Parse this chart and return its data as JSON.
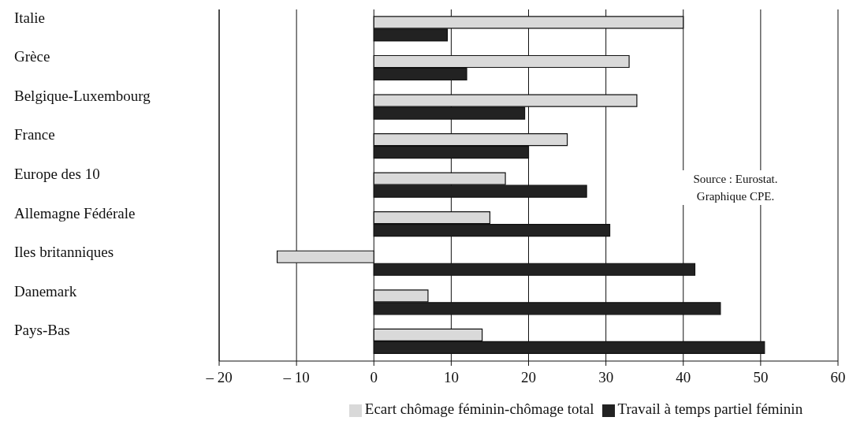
{
  "chart_data": {
    "type": "bar",
    "orientation": "horizontal",
    "categories": [
      "Italie",
      "Grèce",
      "Belgique-Luxembourg",
      "France",
      "Europe des 10",
      "Allemagne Fédérale",
      "Iles britanniques",
      "Danemark",
      "Pays-Bas"
    ],
    "series": [
      {
        "name": "Ecart chômage féminin-chômage total",
        "color": "#d9d9d9",
        "values": [
          40,
          33,
          34,
          25,
          17,
          15,
          -12.5,
          7,
          14
        ]
      },
      {
        "name": "Travail à temps partiel féminin",
        "color": "#222222",
        "values": [
          9.5,
          12,
          19.5,
          20,
          27.5,
          30.5,
          41.5,
          44.8,
          50.5
        ]
      }
    ],
    "xlim": [
      -20,
      60
    ],
    "xticks": [
      {
        "value": -20,
        "label": "– 20"
      },
      {
        "value": -10,
        "label": "– 10"
      },
      0,
      10,
      20,
      30,
      40,
      50,
      60
    ],
    "grid": "x",
    "legend": "bottom",
    "annotations": [
      "Source : Eurostat. Graphique CPE."
    ]
  }
}
